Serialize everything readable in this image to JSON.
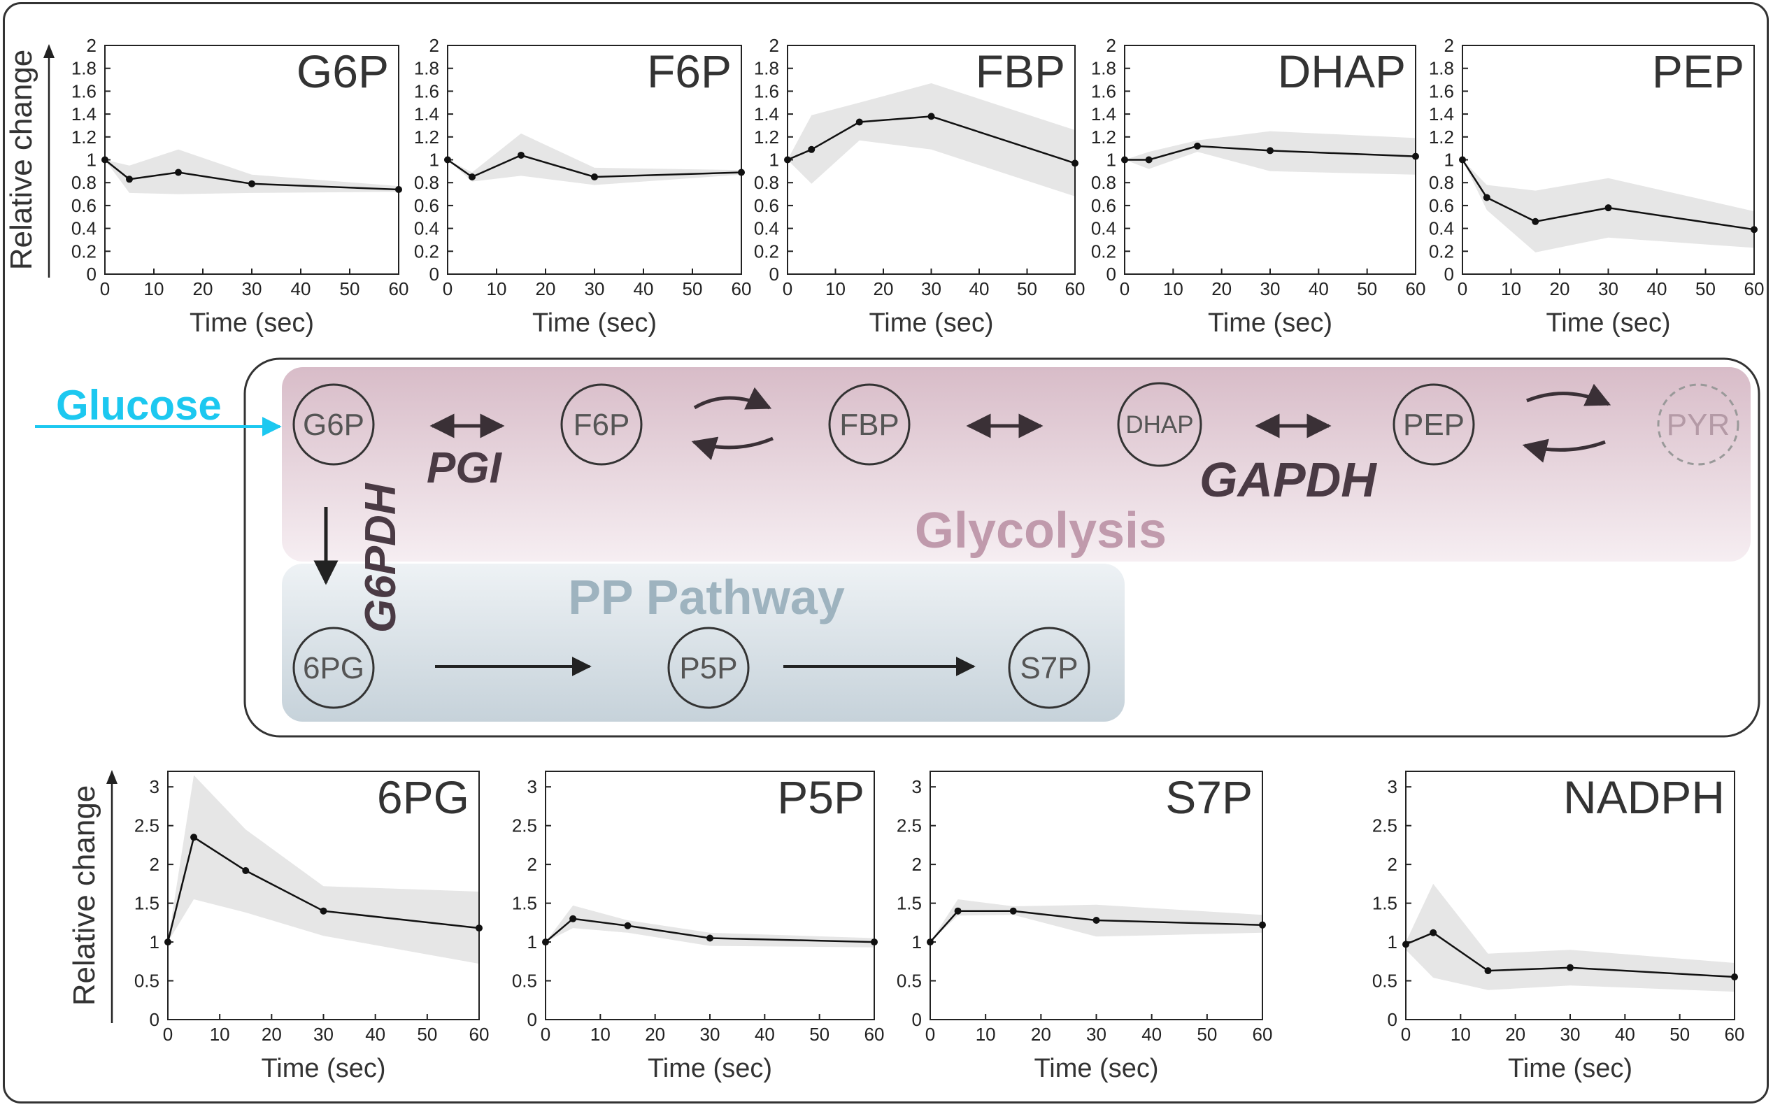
{
  "colors": {
    "glycolysis_band": "#d8bcc8",
    "pp_band": "#c8d4dc",
    "glycolysis_label": "#c09aac",
    "pp_label": "#9eb3bf",
    "glucose": "#1cc8f0",
    "line": "#111111",
    "band": "#e6e6e6",
    "axis": "#222222"
  },
  "pathway": {
    "glucose_label": "Glucose",
    "glycolysis_label": "Glycolysis",
    "pp_label": "PP Pathway",
    "enzymes": {
      "pgi": "PGI",
      "gapdh": "GAPDH",
      "g6pdh": "G6PDH"
    },
    "nodes": {
      "g6p": "G6P",
      "f6p": "F6P",
      "fbp": "FBP",
      "dhap": "DHAP",
      "pep": "PEP",
      "pyr": "PYR",
      "pg6": "6PG",
      "p5p": "P5P",
      "s7p": "S7P"
    }
  },
  "chart_data": [
    {
      "type": "line",
      "title": "G6P",
      "xlabel": "Time (sec)",
      "ylabel": "Relative change",
      "xlim": [
        0,
        60
      ],
      "ylim": [
        0,
        2
      ],
      "xticks": [
        "0",
        "10",
        "20",
        "30",
        "40",
        "50",
        "60"
      ],
      "yticks": [
        "0",
        "0.2",
        "0.4",
        "0.6",
        "0.8",
        "1",
        "1.2",
        "1.4",
        "1.6",
        "1.8",
        "2"
      ],
      "x": [
        0,
        5,
        15,
        30,
        60
      ],
      "y": [
        1.0,
        0.83,
        0.89,
        0.79,
        0.74
      ],
      "band_upper": [
        1.0,
        0.95,
        1.09,
        0.87,
        0.77
      ],
      "band_lower": [
        1.0,
        0.71,
        0.7,
        0.71,
        0.72
      ]
    },
    {
      "type": "line",
      "title": "F6P",
      "xlabel": "Time (sec)",
      "ylabel": "",
      "xlim": [
        0,
        60
      ],
      "ylim": [
        0,
        2
      ],
      "xticks": [
        "0",
        "10",
        "20",
        "30",
        "40",
        "50",
        "60"
      ],
      "yticks": [
        "0",
        "0.2",
        "0.4",
        "0.6",
        "0.8",
        "1",
        "1.2",
        "1.4",
        "1.6",
        "1.8",
        "2"
      ],
      "x": [
        0,
        5,
        15,
        30,
        60
      ],
      "y": [
        1.0,
        0.85,
        1.04,
        0.85,
        0.89
      ],
      "band_upper": [
        1.0,
        0.89,
        1.23,
        0.93,
        0.91
      ],
      "band_lower": [
        1.0,
        0.81,
        0.86,
        0.78,
        0.87
      ]
    },
    {
      "type": "line",
      "title": "FBP",
      "xlabel": "Time (sec)",
      "ylabel": "",
      "xlim": [
        0,
        60
      ],
      "ylim": [
        0,
        2
      ],
      "xticks": [
        "0",
        "10",
        "20",
        "30",
        "40",
        "50",
        "60"
      ],
      "yticks": [
        "0",
        "0.2",
        "0.4",
        "0.6",
        "0.8",
        "1",
        "1.2",
        "1.4",
        "1.6",
        "1.8",
        "2"
      ],
      "x": [
        0,
        5,
        15,
        30,
        60
      ],
      "y": [
        1.0,
        1.09,
        1.33,
        1.38,
        0.97
      ],
      "band_upper": [
        1.0,
        1.39,
        1.5,
        1.67,
        1.26
      ],
      "band_lower": [
        1.0,
        0.79,
        1.17,
        1.09,
        0.68
      ]
    },
    {
      "type": "line",
      "title": "DHAP",
      "xlabel": "Time (sec)",
      "ylabel": "",
      "xlim": [
        0,
        60
      ],
      "ylim": [
        0,
        2
      ],
      "xticks": [
        "0",
        "10",
        "20",
        "30",
        "40",
        "50",
        "60"
      ],
      "yticks": [
        "0",
        "0.2",
        "0.4",
        "0.6",
        "0.8",
        "1",
        "1.2",
        "1.4",
        "1.6",
        "1.8",
        "2"
      ],
      "x": [
        0,
        5,
        15,
        30,
        60
      ],
      "y": [
        1.0,
        1.0,
        1.12,
        1.08,
        1.03
      ],
      "band_upper": [
        1.0,
        1.07,
        1.17,
        1.25,
        1.19
      ],
      "band_lower": [
        1.0,
        0.92,
        1.07,
        0.9,
        0.87
      ]
    },
    {
      "type": "line",
      "title": "PEP",
      "xlabel": "Time (sec)",
      "ylabel": "",
      "xlim": [
        0,
        60
      ],
      "ylim": [
        0,
        2
      ],
      "xticks": [
        "0",
        "10",
        "20",
        "30",
        "40",
        "50",
        "60"
      ],
      "yticks": [
        "0",
        "0.2",
        "0.4",
        "0.6",
        "0.8",
        "1",
        "1.2",
        "1.4",
        "1.6",
        "1.8",
        "2"
      ],
      "x": [
        0,
        5,
        15,
        30,
        60
      ],
      "y": [
        1.0,
        0.67,
        0.46,
        0.58,
        0.39
      ],
      "band_upper": [
        1.0,
        0.78,
        0.73,
        0.84,
        0.55
      ],
      "band_lower": [
        1.0,
        0.56,
        0.19,
        0.32,
        0.23
      ]
    },
    {
      "type": "line",
      "title": "6PG",
      "xlabel": "Time (sec)",
      "ylabel": "Relative change",
      "xlim": [
        0,
        60
      ],
      "ylim": [
        0,
        3.2
      ],
      "xticks": [
        "0",
        "10",
        "20",
        "30",
        "40",
        "50",
        "60"
      ],
      "yticks": [
        "0",
        "0.5",
        "1",
        "1.5",
        "2",
        "2.5",
        "3"
      ],
      "x": [
        0,
        5,
        15,
        30,
        60
      ],
      "y": [
        1.0,
        2.35,
        1.92,
        1.4,
        1.18
      ],
      "band_upper": [
        1.0,
        3.15,
        2.45,
        1.72,
        1.65
      ],
      "band_lower": [
        1.0,
        1.55,
        1.38,
        1.08,
        0.72
      ]
    },
    {
      "type": "line",
      "title": "P5P",
      "xlabel": "Time (sec)",
      "ylabel": "",
      "xlim": [
        0,
        60
      ],
      "ylim": [
        0,
        3.2
      ],
      "xticks": [
        "0",
        "10",
        "20",
        "30",
        "40",
        "50",
        "60"
      ],
      "yticks": [
        "0",
        "0.5",
        "1",
        "1.5",
        "2",
        "2.5",
        "3"
      ],
      "x": [
        0,
        5,
        15,
        30,
        60
      ],
      "y": [
        1.0,
        1.3,
        1.21,
        1.05,
        1.0
      ],
      "band_upper": [
        1.0,
        1.47,
        1.28,
        1.12,
        1.05
      ],
      "band_lower": [
        1.0,
        1.18,
        1.12,
        0.95,
        0.93
      ]
    },
    {
      "type": "line",
      "title": "S7P",
      "xlabel": "Time (sec)",
      "ylabel": "",
      "xlim": [
        0,
        60
      ],
      "ylim": [
        0,
        3.2
      ],
      "xticks": [
        "0",
        "10",
        "20",
        "30",
        "40",
        "50",
        "60"
      ],
      "yticks": [
        "0",
        "0.5",
        "1",
        "1.5",
        "2",
        "2.5",
        "3"
      ],
      "x": [
        0,
        5,
        15,
        30,
        60
      ],
      "y": [
        1.0,
        1.4,
        1.4,
        1.28,
        1.22
      ],
      "band_upper": [
        1.0,
        1.55,
        1.46,
        1.48,
        1.35
      ],
      "band_lower": [
        1.0,
        1.34,
        1.35,
        1.07,
        1.12
      ]
    },
    {
      "type": "line",
      "title": "NADPH",
      "xlabel": "Time (sec)",
      "ylabel": "",
      "xlim": [
        0,
        60
      ],
      "ylim": [
        0,
        3.2
      ],
      "xticks": [
        "0",
        "10",
        "20",
        "30",
        "40",
        "50",
        "60"
      ],
      "yticks": [
        "0",
        "0.5",
        "1",
        "1.5",
        "2",
        "2.5",
        "3"
      ],
      "x": [
        0,
        5,
        15,
        30,
        60
      ],
      "y": [
        0.97,
        1.12,
        0.63,
        0.67,
        0.55
      ],
      "band_upper": [
        1.0,
        1.75,
        0.85,
        0.9,
        0.73
      ],
      "band_lower": [
        0.9,
        0.54,
        0.38,
        0.44,
        0.36
      ]
    }
  ]
}
